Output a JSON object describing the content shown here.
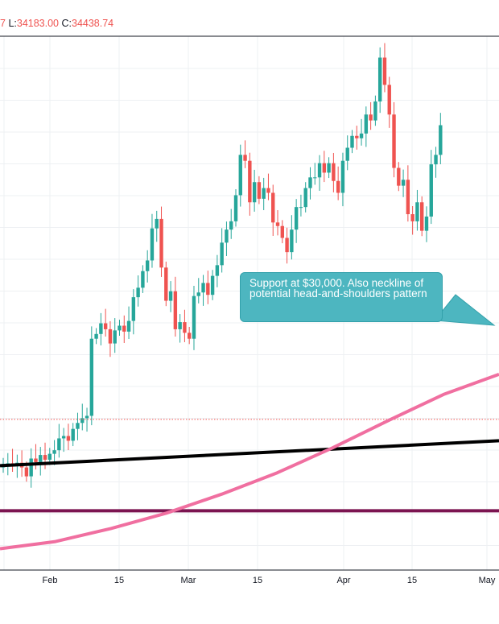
{
  "legend": {
    "open_tail": "7",
    "low_label": "L:",
    "low_value": "34183.00",
    "close_label": "C:",
    "close_value": "34438.74"
  },
  "annotation": {
    "text": "Support at $30,000. Also neckline of potential head-and-shoulders pattern"
  },
  "colors": {
    "up": "#26a69a",
    "down": "#ef5350",
    "moving_average": "#f06fa0",
    "trendline": "#000000",
    "support_line": "#7b1450",
    "callout": "#4db6c0",
    "dotted_level": "#ef5350"
  },
  "chart_data": {
    "type": "candlestick",
    "title": "",
    "xlabel": "",
    "ylabel": "",
    "x_tick_labels": [
      "Feb",
      "15",
      "Mar",
      "15",
      "Apr",
      "15",
      "May"
    ],
    "grid": true,
    "legend": "none",
    "candles_close_approx": [
      28950,
      29000,
      28900,
      29050,
      28650,
      27900,
      29400,
      29100,
      29700,
      29300,
      29800,
      30100,
      31100,
      31300,
      30900,
      31900,
      32400,
      32800,
      33000,
      39500,
      39900,
      40800,
      40300,
      39100,
      40200,
      40600,
      40100,
      41000,
      43000,
      43800,
      45200,
      46100,
      48800,
      49600,
      45500,
      42700,
      43500,
      40300,
      40900,
      40000,
      39500,
      43100,
      43400,
      44200,
      43200,
      44800,
      45700,
      47600,
      48700,
      49400,
      51600,
      55000,
      54500,
      51000,
      52700,
      51300,
      52200,
      51800,
      49300,
      49000,
      48000,
      46800,
      48700,
      50600,
      50600,
      52200,
      53100,
      53100,
      54300,
      53500,
      54300,
      52800,
      51800,
      54500,
      55600,
      56600,
      56400,
      56800,
      58400,
      57900,
      59500,
      63200,
      60900,
      58400,
      53900,
      52400,
      52900,
      50000,
      49400,
      51000,
      48600,
      49800,
      54200,
      55000,
      57500
    ],
    "overlays": [
      {
        "kind": "moving_average",
        "values_approx": [
          21800,
          22400,
          23500,
          24800,
          26400,
          28200,
          30300,
          32600,
          34800,
          36500
        ]
      },
      {
        "kind": "trendline",
        "start": 28800,
        "end": 30900
      },
      {
        "kind": "horizontal_line",
        "value": 25000
      },
      {
        "kind": "dotted_level",
        "value": 32700
      }
    ]
  }
}
